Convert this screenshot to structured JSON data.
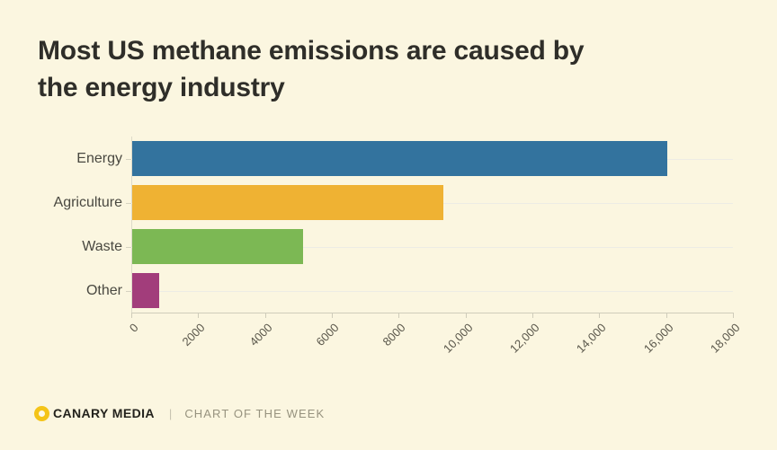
{
  "title": {
    "text": "Most US methane emissions are caused by the energy industry",
    "line1": "Most US methane emissions are caused by",
    "line2": "the energy industry"
  },
  "chart_data": {
    "type": "bar",
    "orientation": "horizontal",
    "title": "Most US methane emissions are caused by the energy industry",
    "categories": [
      "Energy",
      "Agriculture",
      "Waste",
      "Other"
    ],
    "values": [
      16000,
      9300,
      5100,
      800
    ],
    "bar_colors": [
      "#33739e",
      "#efb233",
      "#7cb854",
      "#a23d7b"
    ],
    "xlim": [
      0,
      18000
    ],
    "x_tick_labels": [
      "0",
      "2000",
      "4000",
      "6000",
      "8000",
      "10,000",
      "12,000",
      "14,000",
      "16,000",
      "18,000"
    ],
    "xlabel": "",
    "ylabel": "",
    "grid": "horizontal category gridlines",
    "legend": "none"
  },
  "footer": {
    "brand": "CANARY MEDIA",
    "divider": "|",
    "series_label": "CHART OF THE WEEK"
  },
  "colors": {
    "background": "#fbf6e0",
    "title_text": "#2f2e29",
    "axis": "#cfccba",
    "gridline": "#edece4",
    "tick_label": "#5a574b",
    "category_label": "#494840",
    "logo_yellow": "#f4c418",
    "footer_muted": "#97937f"
  }
}
